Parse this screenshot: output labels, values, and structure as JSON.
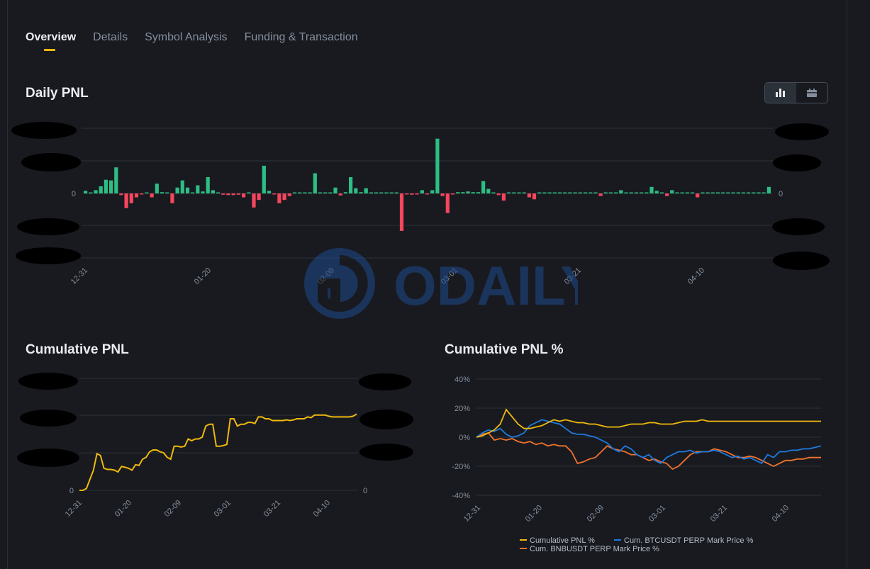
{
  "tabs": [
    {
      "label": "Overview",
      "active": true
    },
    {
      "label": "Details",
      "active": false
    },
    {
      "label": "Symbol Analysis",
      "active": false
    },
    {
      "label": "Funding & Transaction",
      "active": false
    }
  ],
  "toggle": {
    "left_icon": "bar-chart-icon",
    "right_icon": "calendar-icon",
    "selected": "bar-chart"
  },
  "watermark": {
    "text": "ODAILY"
  },
  "colors": {
    "positive": "#2ebd85",
    "negative": "#f6465d",
    "accent": "#f0b90b",
    "btc": "#1f7ae0",
    "bnb": "#f0732b",
    "background": "#181a20"
  },
  "chart_data": [
    {
      "type": "bar",
      "title": "Daily PNL",
      "xlabel": "",
      "ylabel": "",
      "y_tick_labels": [
        "0"
      ],
      "x_tick_labels": [
        "12-31",
        "01-20",
        "02-09",
        "03-01",
        "03-21",
        "04-10"
      ],
      "ylim": [
        -2,
        2
      ],
      "values": [
        0.08,
        0,
        0.1,
        0.22,
        0.42,
        0.4,
        0.8,
        -0.05,
        -0.45,
        -0.3,
        -0.12,
        -0.03,
        0,
        -0.12,
        0.3,
        0.04,
        0,
        -0.3,
        0.18,
        0.4,
        0.18,
        0,
        0.25,
        0.06,
        0.5,
        0.1,
        0.03,
        -0.04,
        -0.05,
        -0.05,
        -0.04,
        -0.12,
        0,
        -0.43,
        -0.2,
        0.85,
        0.08,
        -0.02,
        -0.3,
        -0.2,
        -0.08,
        0,
        0.03,
        0.03,
        0,
        0.62,
        0.02,
        0,
        0.02,
        0.18,
        -0.06,
        0.04,
        0.5,
        0.16,
        0.04,
        0.16,
        0.03,
        0.03,
        0,
        0,
        0.02,
        0,
        -1.15,
        -0.03,
        -0.04,
        -0.03,
        0.1,
        -0.02,
        0.1,
        1.68,
        -0.08,
        -0.6,
        -0.03,
        0.04,
        0.04,
        0.06,
        0.04,
        0.04,
        0.38,
        0.14,
        0.03,
        -0.05,
        -0.22,
        0.03,
        0.03,
        0.03,
        0.03,
        -0.12,
        -0.18,
        0.03,
        0.03,
        0.03,
        0.03,
        0.03,
        0.03,
        0,
        0.03,
        0.03,
        0.03,
        0.03,
        0.03,
        -0.08,
        0.03,
        0.03,
        0.03,
        0.1,
        0.03,
        0.03,
        0.03,
        0.03,
        0.03,
        0.2,
        0.08,
        0.03,
        -0.08,
        0.1,
        0.03,
        0.03,
        0.03,
        0.03,
        -0.12,
        0.03,
        0.03,
        0.03,
        0.03,
        0.03,
        0.03,
        0.03,
        0.03,
        0.03,
        0.03,
        0.03,
        0.03,
        0.03,
        0.2
      ]
    },
    {
      "type": "line",
      "title": "Cumulative PNL",
      "xlabel": "",
      "ylabel": "",
      "y_tick_labels": [
        "0"
      ],
      "x_tick_labels": [
        "12-31",
        "01-20",
        "02-09",
        "03-01",
        "03-21",
        "04-10"
      ],
      "ylim": [
        -0.2,
        2.2
      ],
      "series": [
        {
          "values": [
            0,
            0,
            0.05,
            0.3,
            0.55,
            1.0,
            0.95,
            0.6,
            0.57,
            0.57,
            0.55,
            0.5,
            0.65,
            0.63,
            0.6,
            0.55,
            0.7,
            0.68,
            0.85,
            0.9,
            1.05,
            1.1,
            1.1,
            1.05,
            1.02,
            0.9,
            0.85,
            1.2,
            1.2,
            1.18,
            1.2,
            1.4,
            1.35,
            1.4,
            1.4,
            1.45,
            1.75,
            1.8,
            1.8,
            1.2,
            1.2,
            1.22,
            1.25,
            1.95,
            1.95,
            1.75,
            1.8,
            1.8,
            1.85,
            1.85,
            1.82,
            2.0,
            2.0,
            1.95,
            1.95,
            1.9,
            1.9,
            1.9,
            1.9,
            1.92,
            1.9,
            1.92,
            1.95,
            1.95,
            1.95,
            2.0,
            1.98,
            2.05,
            2.05,
            2.05,
            2.05,
            2.02,
            2.0,
            2.0,
            2.0,
            2.0,
            2.0,
            2.0,
            2.02,
            2.08
          ]
        }
      ]
    },
    {
      "type": "line",
      "title": "Cumulative PNL %",
      "xlabel": "",
      "ylabel": "",
      "y_tick_labels": [
        "40%",
        "20%",
        "0%",
        "-20%",
        "-40%"
      ],
      "x_tick_labels": [
        "12-31",
        "01-20",
        "02-09",
        "03-01",
        "03-21",
        "04-10"
      ],
      "ylim": [
        -40,
        40
      ],
      "legend_position": "bottom",
      "series": [
        {
          "name": "Cumulative PNL %",
          "color": "#f0b90b",
          "values": [
            0,
            1,
            3,
            5,
            9,
            19,
            14,
            9,
            6,
            6,
            7,
            8,
            10,
            12,
            11,
            12,
            11,
            10,
            10,
            9,
            9,
            8,
            7,
            7,
            7,
            8,
            9,
            9,
            9,
            10,
            10,
            9,
            9,
            9,
            10,
            11,
            11,
            11,
            12,
            11,
            11,
            11,
            11,
            11,
            11,
            11,
            11,
            11,
            11,
            11,
            11,
            11,
            11,
            11,
            11,
            11,
            11,
            11,
            11
          ]
        },
        {
          "name": "Cum. BTCUSDT PERP Mark Price %",
          "color": "#1f7ae0",
          "values": [
            0,
            3,
            5,
            4,
            6,
            2,
            0,
            1,
            3,
            8,
            10,
            12,
            11,
            10,
            9,
            6,
            3,
            2,
            2,
            1,
            0,
            -2,
            -4,
            -8,
            -10,
            -6,
            -8,
            -12,
            -14,
            -12,
            -16,
            -18,
            -14,
            -12,
            -10,
            -10,
            -9,
            -11,
            -10,
            -10,
            -9,
            -10,
            -12,
            -14,
            -13,
            -15,
            -14,
            -16,
            -18,
            -12,
            -14,
            -10,
            -10,
            -9,
            -9,
            -8,
            -8,
            -7,
            -6
          ]
        },
        {
          "name": "Cum. BNBUSDT PERP Mark Price %",
          "color": "#f0732b",
          "values": [
            0,
            2,
            3,
            -2,
            -1,
            -2,
            -1,
            -3,
            -4,
            -3,
            -5,
            -4,
            -6,
            -5,
            -6,
            -6,
            -10,
            -18,
            -17,
            -15,
            -14,
            -10,
            -6,
            -8,
            -9,
            -10,
            -12,
            -12,
            -14,
            -16,
            -15,
            -17,
            -18,
            -22,
            -20,
            -16,
            -12,
            -10,
            -10,
            -10,
            -8,
            -9,
            -10,
            -12,
            -14,
            -14,
            -13,
            -14,
            -16,
            -18,
            -20,
            -18,
            -16,
            -16,
            -15,
            -15,
            -14,
            -14,
            -14
          ]
        }
      ]
    }
  ]
}
